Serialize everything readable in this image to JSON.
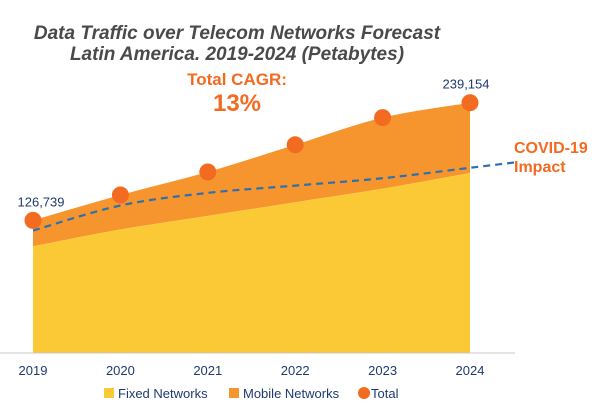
{
  "chart_data": {
    "type": "area",
    "title_line1": "Data Traffic over Telecom Networks Forecast",
    "title_line2": "Latin America. 2019-2024 (Petabytes)",
    "cagr_label": "Total CAGR:",
    "cagr_value": "13%",
    "covid_line1": "COVID-19",
    "covid_line2": "Impact",
    "categories": [
      "2019",
      "2020",
      "2021",
      "2022",
      "2023",
      "2024"
    ],
    "ylim": [
      0,
      280000
    ],
    "series": [
      {
        "name": "Fixed Networks",
        "type": "area",
        "color": "#fcc936",
        "values": [
          102000,
          118000,
          131000,
          144000,
          157000,
          172000
        ]
      },
      {
        "name": "Mobile Networks",
        "type": "area",
        "color": "#f6952e",
        "values": [
          24739,
          33000,
          42000,
          55000,
          68000,
          67154
        ]
      },
      {
        "name": "Total",
        "type": "scatter",
        "color": "#f26b21",
        "values": [
          126739,
          151000,
          173000,
          199000,
          225000,
          239154
        ]
      }
    ],
    "covid_impact_values": [
      117000,
      141000,
      153000,
      160000,
      167000,
      177000
    ],
    "data_labels": [
      {
        "index": 0,
        "text": "126,739"
      },
      {
        "index": 5,
        "text": "239,154"
      }
    ],
    "legend": {
      "position": "bottom",
      "items": [
        {
          "label": "Fixed Networks",
          "color": "#fcc936",
          "shape": "square"
        },
        {
          "label": "Mobile Networks",
          "color": "#f6952e",
          "shape": "square"
        },
        {
          "label": "Total",
          "color": "#f26b21",
          "shape": "circle"
        }
      ]
    },
    "colors": {
      "covid_line": "#2f6fb0",
      "baseline": "#c8c8c8"
    }
  }
}
